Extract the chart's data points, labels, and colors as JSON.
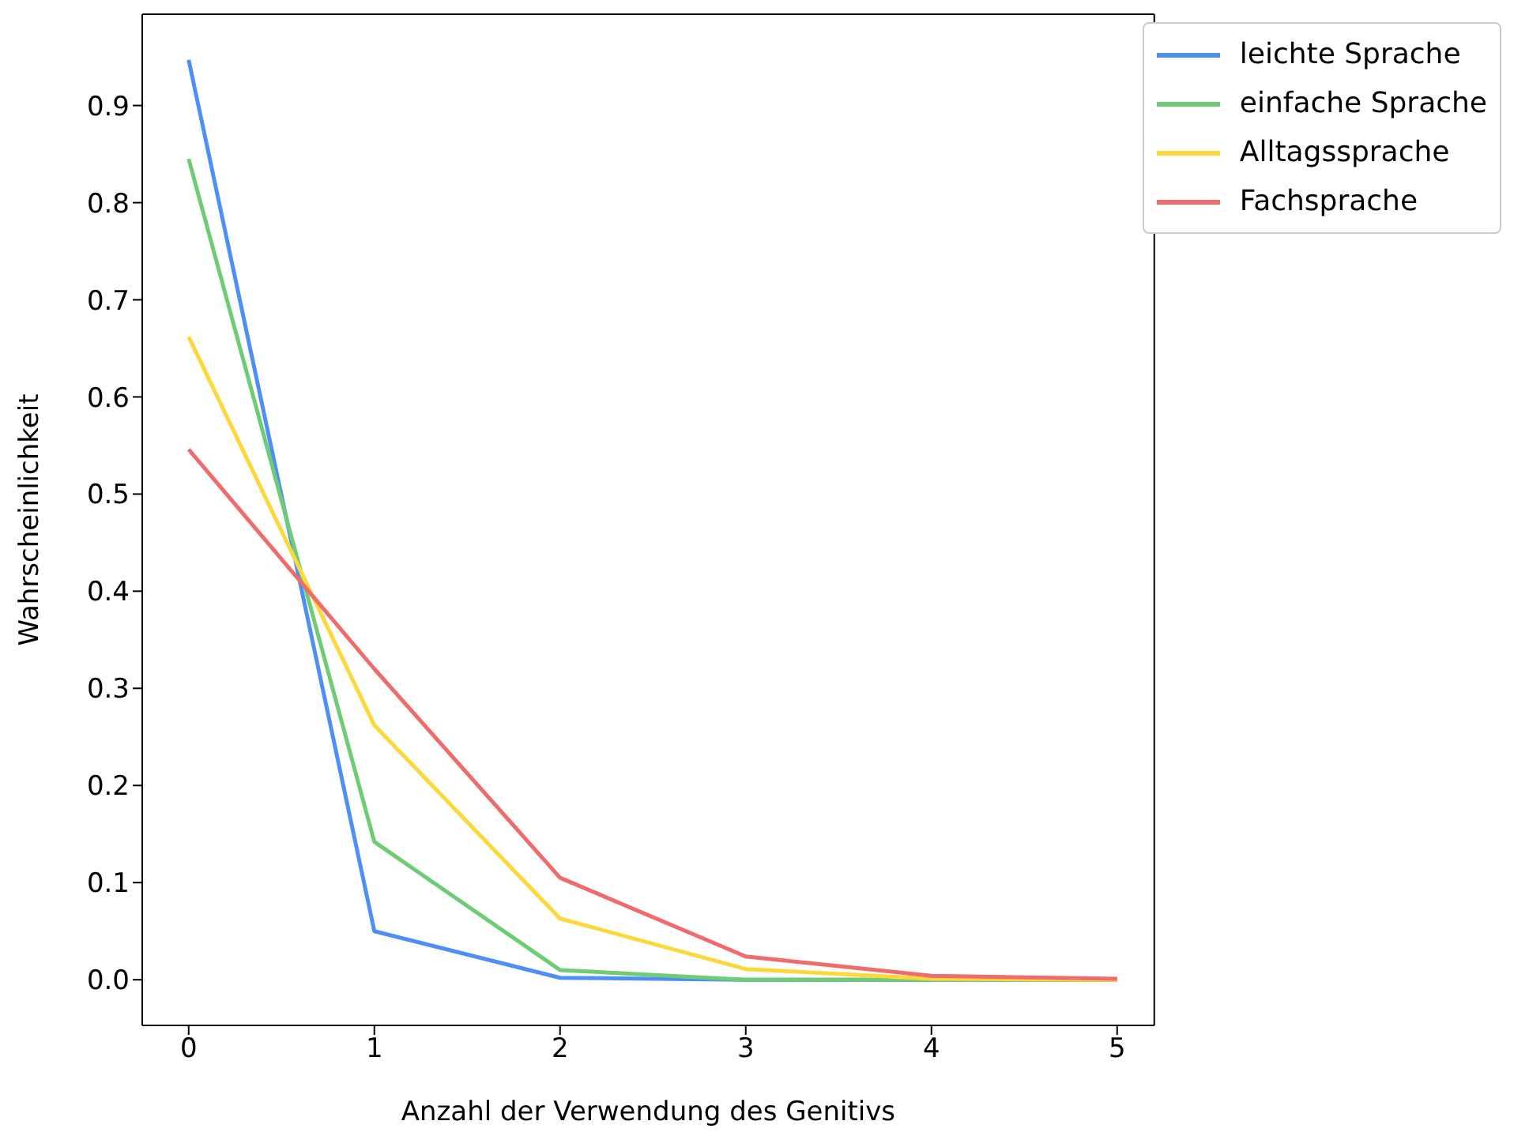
{
  "chart_data": {
    "type": "line",
    "xlabel": "Anzahl der Verwendung des Genitivs",
    "ylabel": "Wahrscheinlichkeit",
    "x": [
      0,
      1,
      2,
      3,
      4,
      5
    ],
    "series": [
      {
        "name": "leichte Sprache",
        "color": "#4d8ff5",
        "values": [
          0.947,
          0.05,
          0.002,
          0,
          0,
          0
        ]
      },
      {
        "name": "einfache Sprache",
        "color": "#6dcc74",
        "values": [
          0.845,
          0.142,
          0.01,
          0,
          0,
          0
        ]
      },
      {
        "name": "Alltagssprache",
        "color": "#fdd83a",
        "values": [
          0.662,
          0.262,
          0.063,
          0.011,
          0.001,
          0
        ]
      },
      {
        "name": "Fachsprache",
        "color": "#f06b6b",
        "values": [
          0.546,
          0.32,
          0.105,
          0.024,
          0.004,
          0.001
        ]
      }
    ],
    "xlim": [
      -0.25,
      5.2
    ],
    "xticks": [
      0,
      1,
      2,
      3,
      4,
      5
    ],
    "ylim": [
      -0.047,
      0.994
    ],
    "yticks": [
      {
        "value": 0,
        "label": "0.0"
      },
      {
        "value": 0.1,
        "label": "0.1"
      },
      {
        "value": 0.2,
        "label": "0.2"
      },
      {
        "value": 0.3,
        "label": "0.3"
      },
      {
        "value": 0.4,
        "label": "0.4"
      },
      {
        "value": 0.5,
        "label": "0.5"
      },
      {
        "value": 0.6,
        "label": "0.6"
      },
      {
        "value": 0.7,
        "label": "0.7"
      },
      {
        "value": 0.8,
        "label": "0.8"
      },
      {
        "value": 0.9,
        "label": "0.9"
      }
    ],
    "grid": false,
    "legend": "top right",
    "marker": "none",
    "line_style": "solid"
  }
}
